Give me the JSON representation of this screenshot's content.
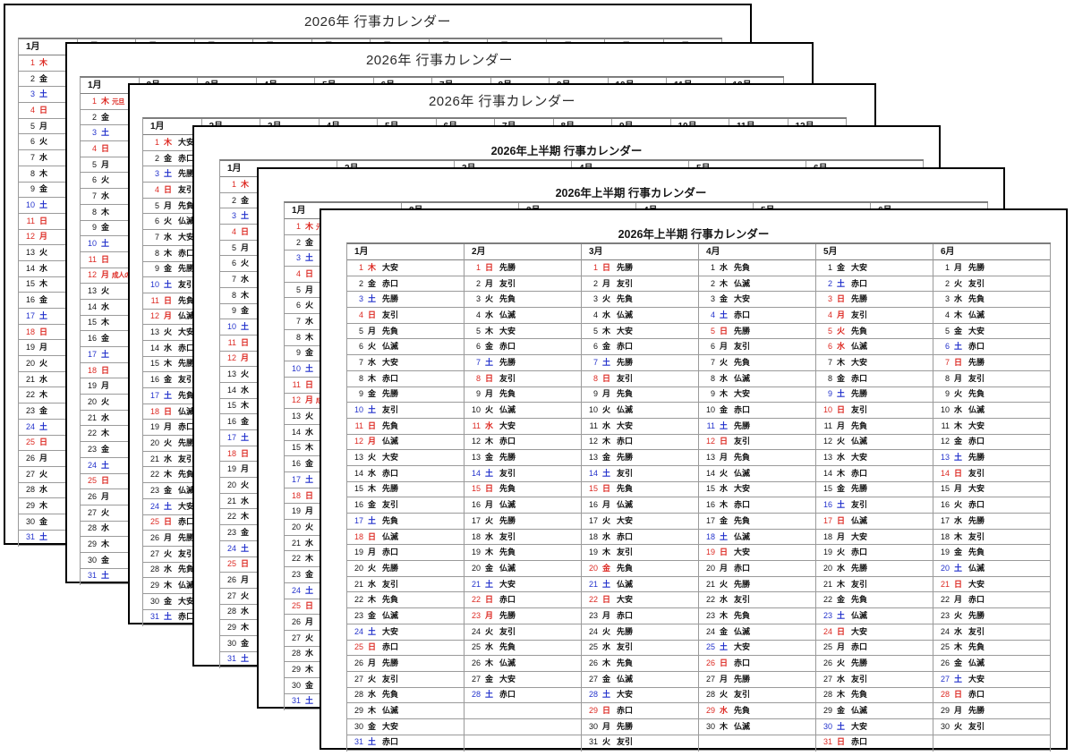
{
  "app": {
    "background": "#ffffff"
  },
  "titles": {
    "year": "2026年 行事カレンダー",
    "half": "2026年上半期 行事カレンダー"
  },
  "month_labels_year": [
    "1月",
    "2月",
    "3月",
    "4月",
    "5月",
    "6月",
    "7月",
    "8月",
    "9月",
    "10月",
    "11月",
    "12月"
  ],
  "month_labels_half": [
    "1月",
    "2月",
    "3月",
    "4月",
    "5月",
    "6月"
  ],
  "pages": [
    {
      "name": "page-1-year-plain",
      "title_key": "year",
      "layout": "year",
      "jan_mode": "plain"
    },
    {
      "name": "page-2-year-annot",
      "title_key": "year",
      "layout": "year",
      "jan_mode": "annot"
    },
    {
      "name": "page-3-year-rokuyo",
      "title_key": "year",
      "layout": "year",
      "jan_mode": "rokuyo"
    },
    {
      "name": "page-4-half-plain",
      "title_key": "half",
      "layout": "half",
      "jan_mode": "plain"
    },
    {
      "name": "page-5-half-annot",
      "title_key": "half",
      "layout": "half",
      "jan_mode": "annot"
    },
    {
      "name": "page-6-half-rokuyo",
      "title_key": "half",
      "layout": "half",
      "jan_mode": "all-rokuyo"
    }
  ],
  "holiday_annotations": {
    "1": "元旦",
    "12": "成人の日"
  },
  "colors": {
    "sunday_holiday": "#dd2b24",
    "saturday": "#2433cc",
    "weekday": "#141414",
    "rokuyo": "#141414",
    "grid": "#9a9a9a",
    "page_border": "#000000",
    "annotation": "#dd2b24"
  },
  "months": [
    {
      "label": "1月",
      "days": [
        [
          1,
          "木",
          "大安",
          "h"
        ],
        [
          2,
          "金",
          "赤口",
          ""
        ],
        [
          3,
          "土",
          "先勝",
          "s"
        ],
        [
          4,
          "日",
          "友引",
          "u"
        ],
        [
          5,
          "月",
          "先負",
          ""
        ],
        [
          6,
          "火",
          "仏滅",
          ""
        ],
        [
          7,
          "水",
          "大安",
          ""
        ],
        [
          8,
          "木",
          "赤口",
          ""
        ],
        [
          9,
          "金",
          "先勝",
          ""
        ],
        [
          10,
          "土",
          "友引",
          "s"
        ],
        [
          11,
          "日",
          "先負",
          "u"
        ],
        [
          12,
          "月",
          "仏滅",
          "h"
        ],
        [
          13,
          "火",
          "大安",
          ""
        ],
        [
          14,
          "水",
          "赤口",
          ""
        ],
        [
          15,
          "木",
          "先勝",
          ""
        ],
        [
          16,
          "金",
          "友引",
          ""
        ],
        [
          17,
          "土",
          "先負",
          "s"
        ],
        [
          18,
          "日",
          "仏滅",
          "u"
        ],
        [
          19,
          "月",
          "赤口",
          ""
        ],
        [
          20,
          "火",
          "先勝",
          ""
        ],
        [
          21,
          "水",
          "友引",
          ""
        ],
        [
          22,
          "木",
          "先負",
          ""
        ],
        [
          23,
          "金",
          "仏滅",
          ""
        ],
        [
          24,
          "土",
          "大安",
          "s"
        ],
        [
          25,
          "日",
          "赤口",
          "u"
        ],
        [
          26,
          "月",
          "先勝",
          ""
        ],
        [
          27,
          "火",
          "友引",
          ""
        ],
        [
          28,
          "水",
          "先負",
          ""
        ],
        [
          29,
          "木",
          "仏滅",
          ""
        ],
        [
          30,
          "金",
          "大安",
          ""
        ],
        [
          31,
          "土",
          "赤口",
          "s"
        ]
      ]
    },
    {
      "label": "2月",
      "days": [
        [
          1,
          "日",
          "先勝",
          "u"
        ],
        [
          2,
          "月",
          "友引",
          ""
        ],
        [
          3,
          "火",
          "先負",
          ""
        ],
        [
          4,
          "水",
          "仏滅",
          ""
        ],
        [
          5,
          "木",
          "大安",
          ""
        ],
        [
          6,
          "金",
          "赤口",
          ""
        ],
        [
          7,
          "土",
          "先勝",
          "s"
        ],
        [
          8,
          "日",
          "友引",
          "u"
        ],
        [
          9,
          "月",
          "先負",
          ""
        ],
        [
          10,
          "火",
          "仏滅",
          ""
        ],
        [
          11,
          "水",
          "大安",
          "h"
        ],
        [
          12,
          "木",
          "赤口",
          ""
        ],
        [
          13,
          "金",
          "先勝",
          ""
        ],
        [
          14,
          "土",
          "友引",
          "s"
        ],
        [
          15,
          "日",
          "先負",
          "u"
        ],
        [
          16,
          "月",
          "仏滅",
          ""
        ],
        [
          17,
          "火",
          "先勝",
          ""
        ],
        [
          18,
          "水",
          "友引",
          ""
        ],
        [
          19,
          "木",
          "先負",
          ""
        ],
        [
          20,
          "金",
          "仏滅",
          ""
        ],
        [
          21,
          "土",
          "大安",
          "s"
        ],
        [
          22,
          "日",
          "赤口",
          "u"
        ],
        [
          23,
          "月",
          "先勝",
          "h"
        ],
        [
          24,
          "火",
          "友引",
          ""
        ],
        [
          25,
          "水",
          "先負",
          ""
        ],
        [
          26,
          "木",
          "仏滅",
          ""
        ],
        [
          27,
          "金",
          "大安",
          ""
        ],
        [
          28,
          "土",
          "赤口",
          "s"
        ]
      ]
    },
    {
      "label": "3月",
      "days": [
        [
          1,
          "日",
          "先勝",
          "u"
        ],
        [
          2,
          "月",
          "友引",
          ""
        ],
        [
          3,
          "火",
          "先負",
          ""
        ],
        [
          4,
          "水",
          "仏滅",
          ""
        ],
        [
          5,
          "木",
          "大安",
          ""
        ],
        [
          6,
          "金",
          "赤口",
          ""
        ],
        [
          7,
          "土",
          "先勝",
          "s"
        ],
        [
          8,
          "日",
          "友引",
          "u"
        ],
        [
          9,
          "月",
          "先負",
          ""
        ],
        [
          10,
          "火",
          "仏滅",
          ""
        ],
        [
          11,
          "水",
          "大安",
          ""
        ],
        [
          12,
          "木",
          "赤口",
          ""
        ],
        [
          13,
          "金",
          "先勝",
          ""
        ],
        [
          14,
          "土",
          "友引",
          "s"
        ],
        [
          15,
          "日",
          "先負",
          "u"
        ],
        [
          16,
          "月",
          "仏滅",
          ""
        ],
        [
          17,
          "火",
          "大安",
          ""
        ],
        [
          18,
          "水",
          "赤口",
          ""
        ],
        [
          19,
          "木",
          "友引",
          ""
        ],
        [
          20,
          "金",
          "先負",
          "h"
        ],
        [
          21,
          "土",
          "仏滅",
          "s"
        ],
        [
          22,
          "日",
          "大安",
          "u"
        ],
        [
          23,
          "月",
          "赤口",
          ""
        ],
        [
          24,
          "火",
          "先勝",
          ""
        ],
        [
          25,
          "水",
          "友引",
          ""
        ],
        [
          26,
          "木",
          "先負",
          ""
        ],
        [
          27,
          "金",
          "仏滅",
          ""
        ],
        [
          28,
          "土",
          "大安",
          "s"
        ],
        [
          29,
          "日",
          "赤口",
          "u"
        ],
        [
          30,
          "月",
          "先勝",
          ""
        ],
        [
          31,
          "火",
          "友引",
          ""
        ]
      ]
    },
    {
      "label": "4月",
      "days": [
        [
          1,
          "水",
          "先負",
          ""
        ],
        [
          2,
          "木",
          "仏滅",
          ""
        ],
        [
          3,
          "金",
          "大安",
          ""
        ],
        [
          4,
          "土",
          "赤口",
          "s"
        ],
        [
          5,
          "日",
          "先勝",
          "u"
        ],
        [
          6,
          "月",
          "友引",
          ""
        ],
        [
          7,
          "火",
          "先負",
          ""
        ],
        [
          8,
          "水",
          "仏滅",
          ""
        ],
        [
          9,
          "木",
          "大安",
          ""
        ],
        [
          10,
          "金",
          "赤口",
          ""
        ],
        [
          11,
          "土",
          "先勝",
          "s"
        ],
        [
          12,
          "日",
          "友引",
          "u"
        ],
        [
          13,
          "月",
          "先負",
          ""
        ],
        [
          14,
          "火",
          "仏滅",
          ""
        ],
        [
          15,
          "水",
          "大安",
          ""
        ],
        [
          16,
          "木",
          "赤口",
          ""
        ],
        [
          17,
          "金",
          "先負",
          ""
        ],
        [
          18,
          "土",
          "仏滅",
          "s"
        ],
        [
          19,
          "日",
          "大安",
          "u"
        ],
        [
          20,
          "月",
          "赤口",
          ""
        ],
        [
          21,
          "火",
          "先勝",
          ""
        ],
        [
          22,
          "水",
          "友引",
          ""
        ],
        [
          23,
          "木",
          "先負",
          ""
        ],
        [
          24,
          "金",
          "仏滅",
          ""
        ],
        [
          25,
          "土",
          "大安",
          "s"
        ],
        [
          26,
          "日",
          "赤口",
          "u"
        ],
        [
          27,
          "月",
          "先勝",
          ""
        ],
        [
          28,
          "火",
          "友引",
          ""
        ],
        [
          29,
          "水",
          "先負",
          "h"
        ],
        [
          30,
          "木",
          "仏滅",
          ""
        ]
      ]
    },
    {
      "label": "5月",
      "days": [
        [
          1,
          "金",
          "大安",
          ""
        ],
        [
          2,
          "土",
          "赤口",
          "s"
        ],
        [
          3,
          "日",
          "先勝",
          "u"
        ],
        [
          4,
          "月",
          "友引",
          "h"
        ],
        [
          5,
          "火",
          "先負",
          "h"
        ],
        [
          6,
          "水",
          "仏滅",
          "h"
        ],
        [
          7,
          "木",
          "大安",
          ""
        ],
        [
          8,
          "金",
          "赤口",
          ""
        ],
        [
          9,
          "土",
          "先勝",
          "s"
        ],
        [
          10,
          "日",
          "友引",
          "u"
        ],
        [
          11,
          "月",
          "先負",
          ""
        ],
        [
          12,
          "火",
          "仏滅",
          ""
        ],
        [
          13,
          "水",
          "大安",
          ""
        ],
        [
          14,
          "木",
          "赤口",
          ""
        ],
        [
          15,
          "金",
          "先勝",
          ""
        ],
        [
          16,
          "土",
          "友引",
          "s"
        ],
        [
          17,
          "日",
          "仏滅",
          "u"
        ],
        [
          18,
          "月",
          "大安",
          ""
        ],
        [
          19,
          "火",
          "赤口",
          ""
        ],
        [
          20,
          "水",
          "先勝",
          ""
        ],
        [
          21,
          "木",
          "友引",
          ""
        ],
        [
          22,
          "金",
          "先負",
          ""
        ],
        [
          23,
          "土",
          "仏滅",
          "s"
        ],
        [
          24,
          "日",
          "大安",
          "u"
        ],
        [
          25,
          "月",
          "赤口",
          ""
        ],
        [
          26,
          "火",
          "先勝",
          ""
        ],
        [
          27,
          "水",
          "友引",
          ""
        ],
        [
          28,
          "木",
          "先負",
          ""
        ],
        [
          29,
          "金",
          "仏滅",
          ""
        ],
        [
          30,
          "土",
          "大安",
          "s"
        ],
        [
          31,
          "日",
          "赤口",
          "u"
        ]
      ]
    },
    {
      "label": "6月",
      "days": [
        [
          1,
          "月",
          "先勝",
          ""
        ],
        [
          2,
          "火",
          "友引",
          ""
        ],
        [
          3,
          "水",
          "先負",
          ""
        ],
        [
          4,
          "木",
          "仏滅",
          ""
        ],
        [
          5,
          "金",
          "大安",
          ""
        ],
        [
          6,
          "土",
          "赤口",
          "s"
        ],
        [
          7,
          "日",
          "先勝",
          "u"
        ],
        [
          8,
          "月",
          "友引",
          ""
        ],
        [
          9,
          "火",
          "先負",
          ""
        ],
        [
          10,
          "水",
          "仏滅",
          ""
        ],
        [
          11,
          "木",
          "大安",
          ""
        ],
        [
          12,
          "金",
          "赤口",
          ""
        ],
        [
          13,
          "土",
          "先勝",
          "s"
        ],
        [
          14,
          "日",
          "友引",
          "u"
        ],
        [
          15,
          "月",
          "大安",
          ""
        ],
        [
          16,
          "火",
          "赤口",
          ""
        ],
        [
          17,
          "水",
          "先勝",
          ""
        ],
        [
          18,
          "木",
          "友引",
          ""
        ],
        [
          19,
          "金",
          "先負",
          ""
        ],
        [
          20,
          "土",
          "仏滅",
          "s"
        ],
        [
          21,
          "日",
          "大安",
          "u"
        ],
        [
          22,
          "月",
          "赤口",
          ""
        ],
        [
          23,
          "火",
          "先勝",
          ""
        ],
        [
          24,
          "水",
          "友引",
          ""
        ],
        [
          25,
          "木",
          "先負",
          ""
        ],
        [
          26,
          "金",
          "仏滅",
          ""
        ],
        [
          27,
          "土",
          "大安",
          "s"
        ],
        [
          28,
          "日",
          "赤口",
          "u"
        ],
        [
          29,
          "月",
          "先勝",
          ""
        ],
        [
          30,
          "火",
          "友引",
          ""
        ]
      ]
    }
  ]
}
